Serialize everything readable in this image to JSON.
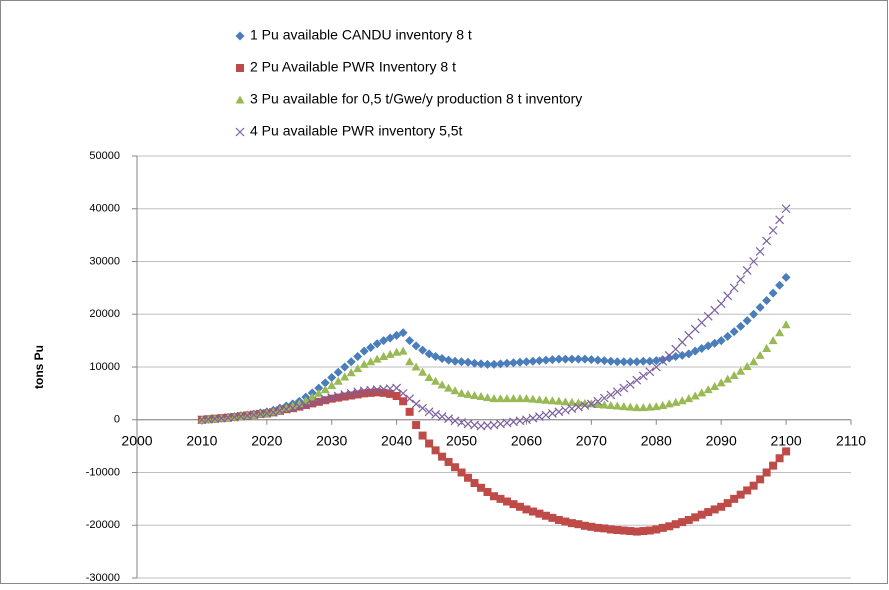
{
  "chart_data": {
    "type": "scatter",
    "y_label": "tons Pu",
    "legend": "top",
    "grid": true,
    "xlim": [
      2000,
      2110
    ],
    "xticks": [
      2000,
      2010,
      2020,
      2030,
      2040,
      2050,
      2060,
      2070,
      2080,
      2090,
      2100,
      2110
    ],
    "ylim": [
      -30000,
      50000
    ],
    "yticks": [
      -30000,
      -20000,
      -10000,
      0,
      10000,
      20000,
      30000,
      40000,
      50000
    ],
    "x": [
      2010,
      2011,
      2012,
      2013,
      2014,
      2015,
      2016,
      2017,
      2018,
      2019,
      2020,
      2021,
      2022,
      2023,
      2024,
      2025,
      2026,
      2027,
      2028,
      2029,
      2030,
      2031,
      2032,
      2033,
      2034,
      2035,
      2036,
      2037,
      2038,
      2039,
      2040,
      2041,
      2042,
      2043,
      2044,
      2045,
      2046,
      2047,
      2048,
      2049,
      2050,
      2051,
      2052,
      2053,
      2054,
      2055,
      2056,
      2057,
      2058,
      2059,
      2060,
      2061,
      2062,
      2063,
      2064,
      2065,
      2066,
      2067,
      2068,
      2069,
      2070,
      2071,
      2072,
      2073,
      2074,
      2075,
      2076,
      2077,
      2078,
      2079,
      2080,
      2081,
      2082,
      2083,
      2084,
      2085,
      2086,
      2087,
      2088,
      2089,
      2090,
      2091,
      2092,
      2093,
      2094,
      2095,
      2096,
      2097,
      2098,
      2099,
      2100
    ],
    "series": [
      {
        "name": "1 Pu available CANDU inventory 8 t",
        "color": "#4a7ebb",
        "marker": "diamond",
        "values": [
          0,
          100,
          200,
          300,
          450,
          600,
          750,
          900,
          1100,
          1300,
          1500,
          1800,
          2200,
          2600,
          3000,
          3500,
          4300,
          5100,
          6000,
          7000,
          8000,
          9000,
          10000,
          11000,
          12000,
          13000,
          13700,
          14400,
          15000,
          15500,
          16000,
          16500,
          15000,
          14000,
          13200,
          12500,
          12000,
          11600,
          11300,
          11100,
          11000,
          10900,
          10700,
          10600,
          10500,
          10500,
          10600,
          10700,
          10800,
          10900,
          11000,
          11100,
          11200,
          11300,
          11400,
          11500,
          11500,
          11500,
          11500,
          11500,
          11400,
          11300,
          11200,
          11100,
          11000,
          11000,
          11000,
          11000,
          11100,
          11100,
          11200,
          11400,
          11700,
          12000,
          12200,
          12500,
          13000,
          13500,
          14000,
          14500,
          15000,
          15800,
          16700,
          17700,
          18800,
          20000,
          21300,
          22600,
          24000,
          25500,
          27000
        ]
      },
      {
        "name": "2 Pu Available PWR Inventory  8 t",
        "color": "#be4b48",
        "marker": "square",
        "values": [
          0,
          100,
          200,
          300,
          400,
          500,
          650,
          800,
          950,
          1100,
          1200,
          1400,
          1700,
          2000,
          2200,
          2500,
          2800,
          3100,
          3400,
          3700,
          4000,
          4200,
          4400,
          4600,
          4800,
          5000,
          5100,
          5200,
          5100,
          4900,
          4500,
          3500,
          1500,
          -1000,
          -3000,
          -4500,
          -5800,
          -7000,
          -8000,
          -9000,
          -10000,
          -11000,
          -12000,
          -12900,
          -13700,
          -14500,
          -15000,
          -15500,
          -16000,
          -16500,
          -17000,
          -17400,
          -17800,
          -18200,
          -18600,
          -19000,
          -19300,
          -19600,
          -19800,
          -20100,
          -20300,
          -20500,
          -20600,
          -20800,
          -20900,
          -21000,
          -21100,
          -21200,
          -21100,
          -21000,
          -20800,
          -20500,
          -20200,
          -19800,
          -19400,
          -19000,
          -18500,
          -18000,
          -17500,
          -17000,
          -16500,
          -15800,
          -15000,
          -14200,
          -13400,
          -12500,
          -11300,
          -10000,
          -8700,
          -7300,
          -6000
        ]
      },
      {
        "name": "3 Pu available for 0,5 t/Gwe/y production 8 t inventory",
        "color": "#98b954",
        "marker": "triangle",
        "values": [
          0,
          100,
          200,
          300,
          400,
          500,
          650,
          800,
          950,
          1100,
          1200,
          1500,
          1800,
          2200,
          2600,
          3000,
          3600,
          4300,
          5000,
          5700,
          6500,
          7300,
          8100,
          8900,
          9700,
          10500,
          11000,
          11500,
          12000,
          12400,
          12800,
          13000,
          11000,
          10000,
          9000,
          8000,
          7300,
          6600,
          6000,
          5500,
          5000,
          4800,
          4600,
          4400,
          4200,
          4000,
          4000,
          4000,
          4000,
          4000,
          4000,
          3900,
          3800,
          3700,
          3600,
          3500,
          3400,
          3300,
          3200,
          3100,
          3000,
          2900,
          2800,
          2700,
          2600,
          2500,
          2400,
          2300,
          2300,
          2400,
          2500,
          2700,
          3000,
          3300,
          3600,
          4000,
          4500,
          5100,
          5700,
          6300,
          7000,
          7700,
          8400,
          9200,
          10100,
          11000,
          12200,
          13500,
          15000,
          16500,
          18000
        ]
      },
      {
        "name": "4 Pu available PWR inventory 5,5t",
        "color": "#7d60a0",
        "marker": "x",
        "values": [
          0,
          100,
          200,
          300,
          400,
          500,
          650,
          800,
          950,
          1100,
          1200,
          1400,
          1700,
          2000,
          2200,
          2500,
          2800,
          3200,
          3500,
          3900,
          4200,
          4500,
          4800,
          5000,
          5300,
          5500,
          5600,
          5700,
          5800,
          5900,
          6000,
          5000,
          4000,
          3000,
          2200,
          1500,
          1000,
          600,
          200,
          -200,
          -500,
          -800,
          -1000,
          -1200,
          -1100,
          -1000,
          -800,
          -600,
          -400,
          -200,
          0,
          300,
          600,
          900,
          1200,
          1500,
          1800,
          2100,
          2400,
          2700,
          3000,
          3500,
          4100,
          4700,
          5300,
          6000,
          6700,
          7500,
          8300,
          9100,
          10000,
          11100,
          12200,
          13400,
          14700,
          16000,
          17200,
          18400,
          19600,
          20800,
          22000,
          23500,
          25000,
          26600,
          28300,
          30000,
          31900,
          33900,
          35900,
          37900,
          40000
        ]
      }
    ]
  }
}
